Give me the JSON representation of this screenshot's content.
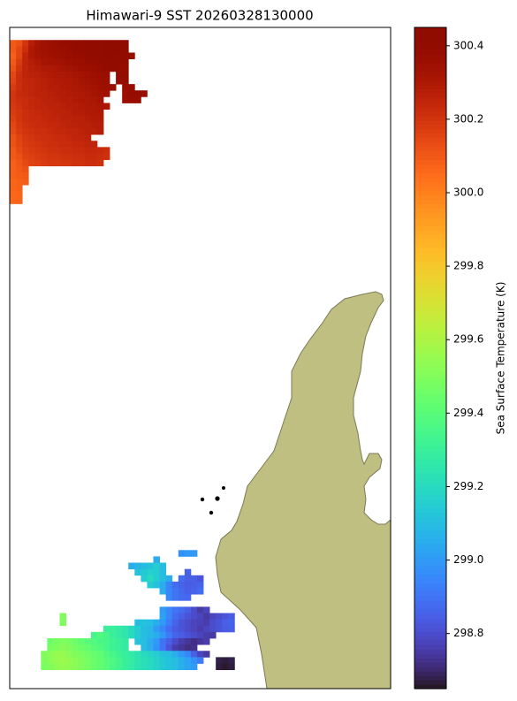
{
  "chart_data": {
    "type": "heatmap",
    "title": "Himawari-9 SST 20260328130000",
    "colorbar_label": "Sea Surface Temperature (K)",
    "clim": [
      298.65,
      300.45
    ],
    "cticks": [
      298.8,
      {
        "value": 299.0,
        "label": "299.0"
      },
      299.2,
      299.4,
      299.6,
      299.8,
      {
        "value": 300.0,
        "label": "300.0"
      },
      300.2,
      300.4
    ],
    "colormap": "turbo",
    "cells": [
      {
        "row": 2,
        "col": 0,
        "values": [
          300.1,
          300.12,
          300.2,
          300.28,
          300.32,
          300.34,
          300.35,
          300.37,
          300.38,
          300.38,
          300.39,
          300.4,
          300.4,
          300.41,
          300.41,
          300.42,
          300.43,
          300.43,
          300.42
        ]
      },
      {
        "row": 3,
        "col": 0,
        "values": [
          300.1,
          300.15,
          300.22,
          300.3,
          300.33,
          300.34,
          300.35,
          300.36,
          300.37,
          300.38,
          300.39,
          300.39,
          300.4,
          300.4,
          300.41,
          300.42,
          300.43,
          300.42,
          300.41
        ]
      },
      {
        "row": 4,
        "col": 0,
        "values": [
          300.08,
          300.15,
          300.25,
          300.3,
          300.32,
          300.33,
          300.34,
          300.35,
          300.36,
          300.37,
          300.38,
          300.38,
          300.39,
          300.4,
          300.41,
          300.42,
          300.42,
          300.41,
          300.4,
          300.38
        ]
      },
      {
        "row": 5,
        "col": 0,
        "values": [
          300.1,
          300.18,
          300.25,
          300.28,
          300.3,
          300.32,
          300.33,
          300.33,
          300.34,
          300.35,
          300.36,
          300.37,
          300.38,
          300.38,
          300.4,
          300.41,
          300.41,
          300.4,
          300.39
        ]
      },
      {
        "row": 6,
        "col": 0,
        "values": [
          300.12,
          300.2,
          300.25,
          300.27,
          300.28,
          300.3,
          300.3,
          300.31,
          300.32,
          300.33,
          300.34,
          300.35,
          300.36,
          300.37,
          300.38,
          300.39,
          300.4,
          300.39,
          300.38
        ]
      },
      {
        "row": 7,
        "col": 0,
        "values": [
          300.15,
          300.22,
          300.25,
          300.26,
          300.27,
          300.28,
          300.29,
          300.3,
          300.3,
          300.31,
          300.32,
          300.33,
          300.34,
          300.35,
          300.36,
          300.37
        ]
      },
      {
        "row": 7,
        "col": 17,
        "values": [
          300.38,
          300.39
        ]
      },
      {
        "row": 8,
        "col": 0,
        "values": [
          300.16,
          300.22,
          300.24,
          300.25,
          300.26,
          300.27,
          300.28,
          300.29,
          300.3,
          300.3,
          300.31,
          300.32,
          300.33,
          300.34,
          300.35,
          300.36
        ]
      },
      {
        "row": 8,
        "col": 17,
        "values": [
          300.38,
          300.38
        ]
      },
      {
        "row": 9,
        "col": 0,
        "values": [
          300.18,
          300.22,
          300.24,
          300.25,
          300.26,
          300.27,
          300.28,
          300.28,
          300.29,
          300.3,
          300.3,
          300.31,
          300.32,
          300.33,
          300.34,
          300.35,
          300.36
        ]
      },
      {
        "row": 9,
        "col": 18,
        "values": [
          300.37,
          300.38
        ]
      },
      {
        "row": 10,
        "col": 0,
        "values": [
          300.2,
          300.23,
          300.24,
          300.25,
          300.26,
          300.26,
          300.27,
          300.28,
          300.28,
          300.29,
          300.3,
          300.3,
          300.31,
          300.32,
          300.33,
          300.34
        ]
      },
      {
        "row": 10,
        "col": 18,
        "values": [
          300.35,
          300.38,
          300.38,
          300.37
        ]
      },
      {
        "row": 11,
        "col": 0,
        "values": [
          300.2,
          300.22,
          300.23,
          300.24,
          300.25,
          300.26,
          300.26,
          300.27,
          300.28,
          300.28,
          300.29,
          300.3,
          300.3,
          300.31,
          300.32
        ]
      },
      {
        "row": 11,
        "col": 18,
        "values": [
          300.36,
          300.37,
          300.37
        ]
      },
      {
        "row": 12,
        "col": 0,
        "values": [
          300.19,
          300.21,
          300.23,
          300.24,
          300.25,
          300.25,
          300.26,
          300.26,
          300.27,
          300.28,
          300.28,
          300.29,
          300.3,
          300.3,
          300.31,
          300.31
        ]
      },
      {
        "row": 13,
        "col": 0,
        "values": [
          300.18,
          300.2,
          300.22,
          300.23,
          300.24,
          300.25,
          300.25,
          300.26,
          300.26,
          300.27,
          300.28,
          300.28,
          300.29,
          300.3,
          300.3
        ]
      },
      {
        "row": 14,
        "col": 0,
        "values": [
          300.17,
          300.2,
          300.22,
          300.23,
          300.23,
          300.24,
          300.25,
          300.25,
          300.26,
          300.26,
          300.27,
          300.27,
          300.28,
          300.29,
          300.29
        ]
      },
      {
        "row": 15,
        "col": 0,
        "values": [
          300.15,
          300.19,
          300.21,
          300.22,
          300.23,
          300.23,
          300.24,
          300.24,
          300.25,
          300.26,
          300.26,
          300.27,
          300.27,
          300.28,
          300.28
        ]
      },
      {
        "row": 16,
        "col": 0,
        "values": [
          300.14,
          300.18,
          300.2,
          300.21,
          300.22,
          300.22,
          300.23,
          300.24,
          300.24,
          300.25,
          300.25,
          300.26,
          300.27,
          300.27,
          300.28
        ]
      },
      {
        "row": 17,
        "col": 0,
        "values": [
          300.12,
          300.16,
          300.19,
          300.2,
          300.21,
          300.22,
          300.22,
          300.23,
          300.23,
          300.24,
          300.25,
          300.25,
          300.26
        ]
      },
      {
        "row": 18,
        "col": 0,
        "values": [
          300.12,
          300.15,
          300.18,
          300.19,
          300.2,
          300.21,
          300.22,
          300.22,
          300.23,
          300.23,
          300.24,
          300.24,
          300.25,
          300.25
        ]
      },
      {
        "row": 19,
        "col": 0,
        "values": [
          300.1,
          300.14,
          300.17,
          300.18,
          300.19,
          300.2,
          300.21,
          300.21,
          300.22,
          300.22,
          300.23,
          300.23,
          300.24,
          300.24,
          300.23,
          300.22
        ]
      },
      {
        "row": 20,
        "col": 0,
        "values": [
          300.1,
          300.12,
          300.16,
          300.17,
          300.18,
          300.19,
          300.2,
          300.2,
          300.21,
          300.21,
          300.22,
          300.22,
          300.23,
          300.23,
          300.22,
          300.21
        ]
      },
      {
        "row": 21,
        "col": 0,
        "values": [
          300.08,
          300.11,
          300.14,
          300.16,
          300.17,
          300.18,
          300.19,
          300.19,
          300.2,
          300.2,
          300.21,
          300.21,
          300.22,
          300.22,
          300.21
        ]
      },
      {
        "row": 22,
        "col": 0,
        "values": [
          300.08,
          300.1,
          300.12
        ]
      },
      {
        "row": 23,
        "col": 0,
        "values": [
          300.08,
          300.09,
          300.1
        ]
      },
      {
        "row": 24,
        "col": 0,
        "values": [
          300.07,
          300.08,
          300.09
        ]
      },
      {
        "row": 25,
        "col": 0,
        "values": [
          300.07,
          300.08
        ]
      },
      {
        "row": 26,
        "col": 0,
        "values": [
          300.06,
          300.07
        ]
      },
      {
        "row": 27,
        "col": 0,
        "values": [
          300.06,
          300.07
        ]
      },
      {
        "row": 83,
        "col": 27,
        "values": [
          298.98,
          299.0,
          299.0
        ]
      },
      {
        "row": 84,
        "col": 23,
        "values": [
          299.05
        ]
      },
      {
        "row": 85,
        "col": 19,
        "values": [
          299.05,
          299.08,
          299.1,
          299.12,
          299.15,
          299.1
        ]
      },
      {
        "row": 86,
        "col": 20,
        "values": [
          299.12,
          299.14,
          299.16,
          299.15,
          299.1
        ]
      },
      {
        "row": 86,
        "col": 28,
        "values": [
          298.85
        ]
      },
      {
        "row": 87,
        "col": 21,
        "values": [
          299.15,
          299.2,
          299.15,
          299.1,
          299.05
        ]
      },
      {
        "row": 87,
        "col": 27,
        "values": [
          298.88,
          298.85,
          298.85,
          298.82
        ]
      },
      {
        "row": 88,
        "col": 22,
        "values": [
          299.15,
          299.12,
          299.05,
          298.95,
          298.88,
          298.86,
          298.84,
          298.85,
          298.86
        ]
      },
      {
        "row": 89,
        "col": 24,
        "values": [
          299.05,
          298.95,
          298.9,
          298.87,
          298.85,
          298.86,
          298.88
        ]
      },
      {
        "row": 90,
        "col": 25,
        "values": [
          298.95,
          298.9,
          298.88,
          298.87
        ]
      },
      {
        "row": 92,
        "col": 24,
        "values": [
          299.0,
          298.95,
          298.9,
          298.88,
          298.85,
          298.8,
          298.75,
          298.78
        ]
      },
      {
        "row": 93,
        "col": 8,
        "values": [
          299.5
        ]
      },
      {
        "row": 93,
        "col": 24,
        "values": [
          299.02,
          298.95,
          298.88,
          298.85,
          298.82,
          298.8,
          298.78,
          298.75,
          298.78,
          298.8,
          298.82,
          298.84
        ]
      },
      {
        "row": 94,
        "col": 8,
        "values": [
          299.5
        ]
      },
      {
        "row": 94,
        "col": 20,
        "values": [
          299.1,
          299.12,
          299.1,
          299.05,
          299.0,
          298.92,
          298.86,
          298.82,
          298.8,
          298.78,
          298.77,
          298.76,
          298.8,
          298.82,
          298.85,
          298.86
        ]
      },
      {
        "row": 95,
        "col": 15,
        "values": [
          299.3,
          299.3,
          299.28,
          299.25,
          299.2,
          299.15,
          299.1,
          299.08,
          299.0,
          298.95,
          298.88,
          298.84,
          298.82,
          298.8,
          298.78,
          298.76,
          298.78,
          298.8,
          298.82,
          298.84,
          298.85
        ]
      },
      {
        "row": 96,
        "col": 13,
        "values": [
          299.35,
          299.38,
          299.35,
          299.3,
          299.28,
          299.25,
          299.2,
          299.15,
          299.1,
          299.08,
          299.05,
          299.0,
          298.92,
          298.86,
          298.84,
          298.82,
          298.8,
          298.78,
          298.76,
          298.75
        ]
      },
      {
        "row": 97,
        "col": 6,
        "values": [
          299.45,
          299.48,
          299.5,
          299.48,
          299.45,
          299.42,
          299.4,
          299.38,
          299.36,
          299.35,
          299.32,
          299.3,
          299.28
        ]
      },
      {
        "row": 97,
        "col": 20,
        "values": [
          299.12,
          299.1,
          299.05,
          299.0,
          298.9,
          298.85,
          298.8,
          298.76,
          298.74,
          298.72,
          298.74,
          298.76
        ]
      },
      {
        "row": 98,
        "col": 6,
        "values": [
          299.48,
          299.5,
          299.52,
          299.5,
          299.47,
          299.45,
          299.43,
          299.4,
          299.38,
          299.35,
          299.32,
          299.3,
          299.28
        ]
      },
      {
        "row": 98,
        "col": 21,
        "values": [
          299.1,
          299.05,
          298.98,
          298.9,
          298.82,
          298.76,
          298.74,
          298.72,
          298.73
        ]
      },
      {
        "row": 99,
        "col": 5,
        "values": [
          299.5,
          299.52,
          299.55,
          299.55,
          299.52,
          299.5,
          299.48,
          299.46,
          299.44,
          299.42,
          299.38,
          299.35,
          299.32,
          299.3,
          299.27,
          299.24,
          299.2,
          299.18,
          299.15,
          299.12,
          299.1,
          299.05,
          299.0,
          298.95,
          298.85,
          298.78,
          298.75
        ]
      },
      {
        "row": 100,
        "col": 5,
        "values": [
          299.5,
          299.52,
          299.55,
          299.56,
          299.55,
          299.52,
          299.5,
          299.48,
          299.45,
          299.42,
          299.4,
          299.37,
          299.34,
          299.3,
          299.28,
          299.25,
          299.22,
          299.2,
          299.17,
          299.14,
          299.12,
          299.1,
          299.06,
          299.02,
          298.98,
          298.92
        ]
      },
      {
        "row": 100,
        "col": 33,
        "values": [
          298.68,
          298.67,
          298.68
        ]
      },
      {
        "row": 101,
        "col": 5,
        "values": [
          299.48,
          299.5,
          299.53,
          299.55,
          299.54,
          299.52,
          299.5,
          299.47,
          299.44,
          299.42,
          299.4,
          299.36,
          299.33,
          299.3,
          299.27,
          299.24,
          299.22,
          299.2,
          299.17,
          299.14,
          299.12,
          299.1,
          299.06,
          299.03,
          299.0
        ]
      },
      {
        "row": 101,
        "col": 33,
        "values": [
          298.67,
          298.66,
          298.67
        ]
      }
    ]
  }
}
